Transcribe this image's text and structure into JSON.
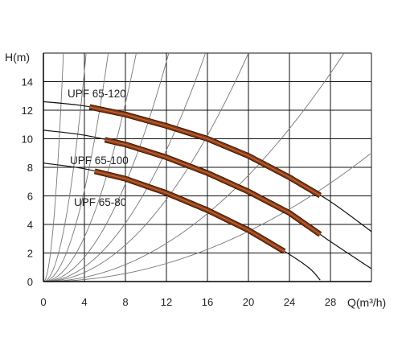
{
  "chart_data": {
    "type": "line",
    "title": "",
    "xlabel": "Q(m³/h)",
    "ylabel": "H(m)",
    "xlim": [
      0,
      32
    ],
    "ylim": [
      0,
      16
    ],
    "xticks": [
      0,
      4,
      8,
      12,
      16,
      20,
      24,
      28
    ],
    "yticks": [
      0,
      2,
      4,
      6,
      8,
      10,
      12,
      14
    ],
    "grid": true,
    "system_curves": [
      {
        "k": 4.2
      },
      {
        "k": 0.92
      },
      {
        "k": 0.4
      },
      {
        "k": 0.195
      },
      {
        "k": 0.107
      },
      {
        "k": 0.064
      },
      {
        "k": 0.04
      },
      {
        "k": 0.0186
      },
      {
        "k": 0.0088
      }
    ],
    "series": [
      {
        "name": "UPF 65-120",
        "color": "#8a3a12",
        "curve": [
          [
            0,
            12.6
          ],
          [
            4,
            12.3
          ],
          [
            8,
            11.7
          ],
          [
            12,
            10.9
          ],
          [
            16,
            10.0
          ],
          [
            20,
            8.8
          ],
          [
            24,
            7.3
          ],
          [
            28,
            5.6
          ],
          [
            32,
            3.5
          ]
        ],
        "operating_range": [
          4.5,
          27
        ]
      },
      {
        "name": "UPF 65-100",
        "color": "#8a3a12",
        "curve": [
          [
            0,
            10.6
          ],
          [
            4,
            10.25
          ],
          [
            8,
            9.6
          ],
          [
            12,
            8.7
          ],
          [
            16,
            7.6
          ],
          [
            20,
            6.3
          ],
          [
            24,
            4.8
          ],
          [
            28,
            2.8
          ],
          [
            32,
            0.9
          ]
        ],
        "operating_range": [
          6,
          27
        ]
      },
      {
        "name": "UPF 65-80",
        "color": "#8a3a12",
        "curve": [
          [
            0,
            8.3
          ],
          [
            4,
            7.9
          ],
          [
            8,
            7.2
          ],
          [
            12,
            6.2
          ],
          [
            16,
            5.0
          ],
          [
            20,
            3.6
          ],
          [
            24,
            1.9
          ],
          [
            26,
            0.9
          ],
          [
            27,
            0.1
          ]
        ],
        "operating_range": [
          5,
          23.5
        ]
      }
    ],
    "legend": "inline-labels"
  }
}
